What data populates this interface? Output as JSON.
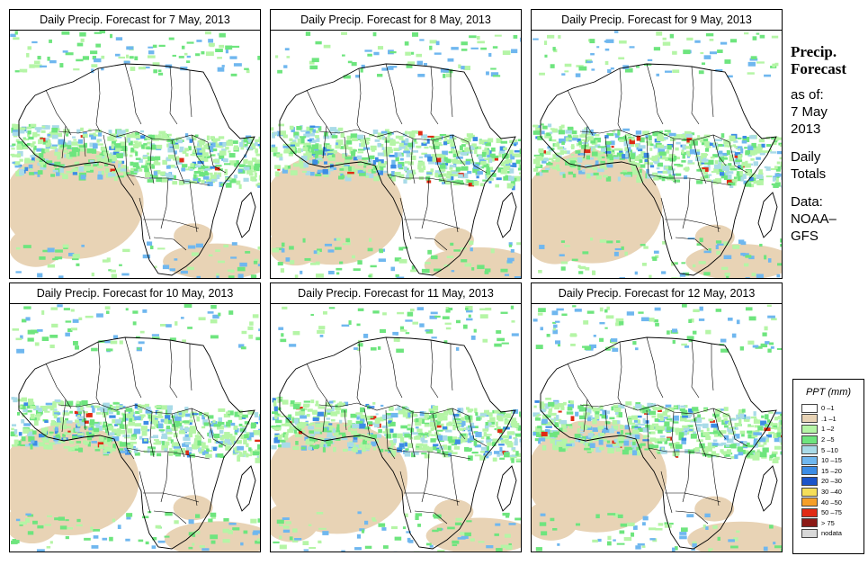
{
  "panels": [
    {
      "title": "Daily Precip. Forecast for  7 May, 2013",
      "seed": 7
    },
    {
      "title": "Daily Precip. Forecast for  8 May, 2013",
      "seed": 8
    },
    {
      "title": "Daily Precip. Forecast for  9 May, 2013",
      "seed": 9
    },
    {
      "title": "Daily Precip. Forecast for  10 May, 2013",
      "seed": 10
    },
    {
      "title": "Daily Precip. Forecast for  11 May, 2013",
      "seed": 11
    },
    {
      "title": "Daily Precip. Forecast for  12 May, 2013",
      "seed": 12
    }
  ],
  "sidebar": {
    "title_line1": "Precip.",
    "title_line2": "Forecast",
    "asof_line1": "as of:",
    "asof_line2": "7 May",
    "asof_line3": "2013",
    "daily_line1": "Daily",
    "daily_line2": "Totals",
    "data_line1": "Data:",
    "data_line2": "NOAA–",
    "data_line3": "GFS"
  },
  "legend": {
    "title": "PPT (mm)",
    "items": [
      {
        "label": "0 –1",
        "color": "#ffffff"
      },
      {
        "label": ".1 –1",
        "color": "#e8d3b5"
      },
      {
        "label": "1 –2",
        "color": "#b5f5a6"
      },
      {
        "label": "2 –5",
        "color": "#6ee57e"
      },
      {
        "label": "5 –10",
        "color": "#a9dbe8"
      },
      {
        "label": "10 –15",
        "color": "#6fb7ef"
      },
      {
        "label": "15 –20",
        "color": "#3c8ce5"
      },
      {
        "label": "20 –30",
        "color": "#1b54c9"
      },
      {
        "label": "30 –40",
        "color": "#f5de58"
      },
      {
        "label": "40 –50",
        "color": "#f59f2a"
      },
      {
        "label": "50 –75",
        "color": "#e02a14"
      },
      {
        "label": "> 75",
        "color": "#8b1a16"
      },
      {
        "label": "nodata",
        "color": "#d8d8d8"
      }
    ]
  }
}
